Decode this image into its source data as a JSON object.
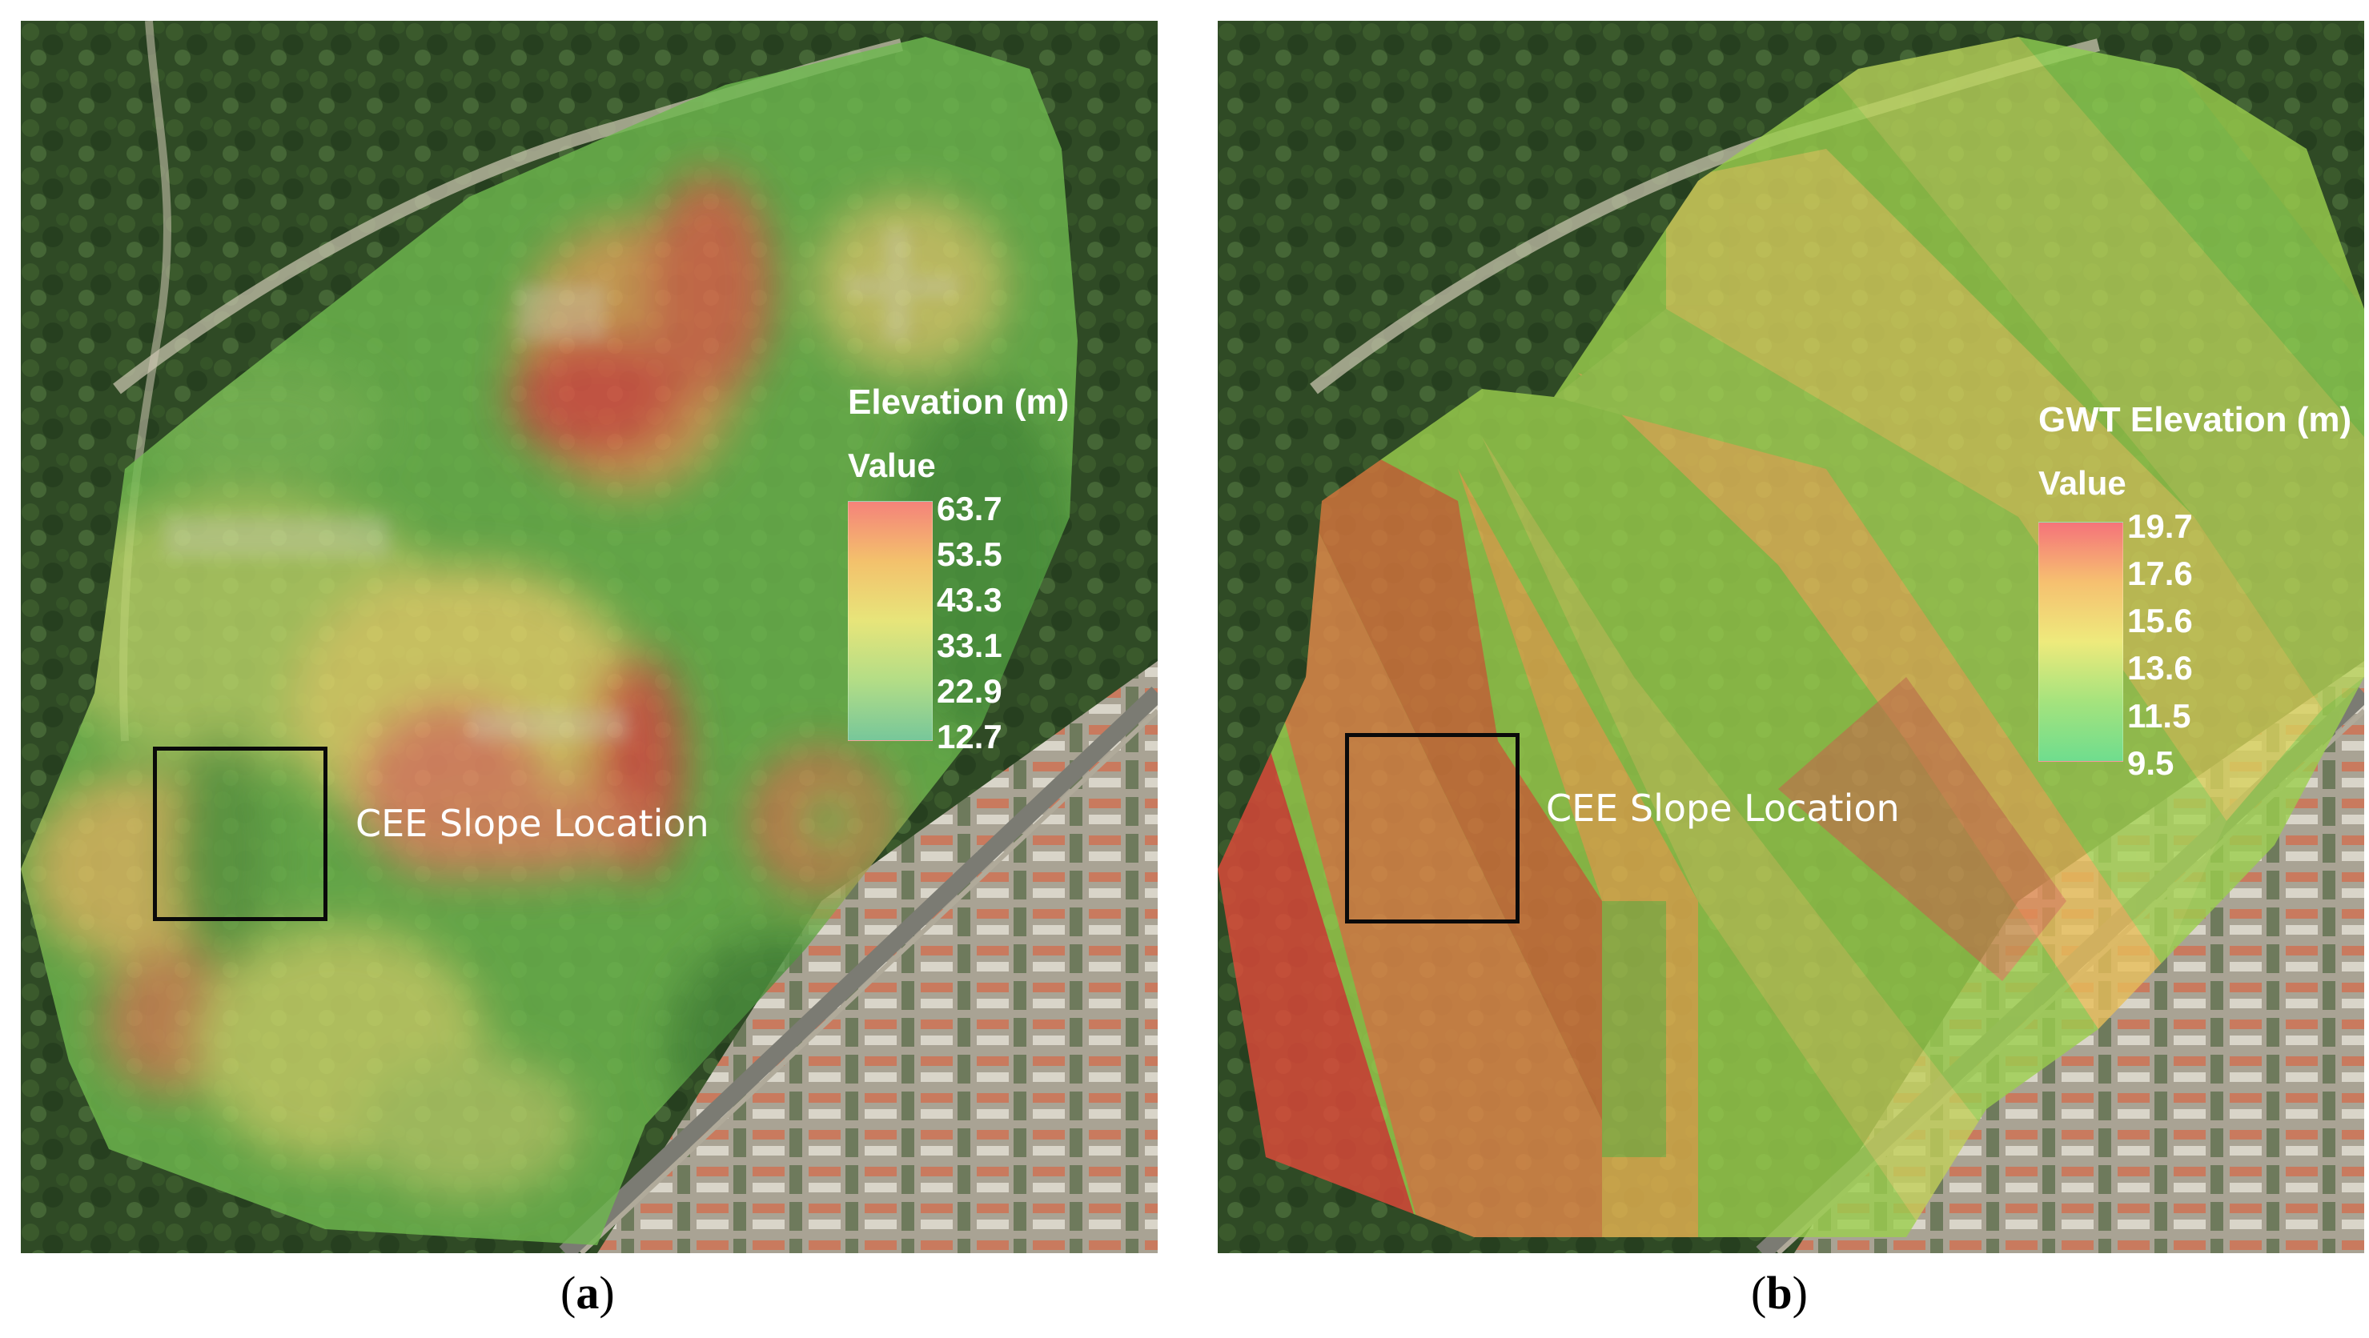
{
  "panels": [
    {
      "caption_letter": "a",
      "legend": {
        "title": "Elevation (m)",
        "value_heading": "Value",
        "ticks": [
          "63.7",
          "53.5",
          "43.3",
          "33.1",
          "22.9",
          "12.7"
        ],
        "ramp_colors": [
          "#f5837a",
          "#f3c16c",
          "#e7e57a",
          "#b3dd86",
          "#77c79a"
        ]
      },
      "slope_label": "CEE Slope Location"
    },
    {
      "caption_letter": "b",
      "legend": {
        "title": "GWT Elevation (m)",
        "value_heading": "Value",
        "ticks": [
          "19.7",
          "17.6",
          "15.6",
          "13.6",
          "11.5",
          "9.5"
        ],
        "ramp_colors": [
          "#f5737a",
          "#f6c070",
          "#eeea7c",
          "#a5e37d",
          "#6fdd8e"
        ]
      },
      "slope_label": "CEE Slope Location"
    }
  ]
}
